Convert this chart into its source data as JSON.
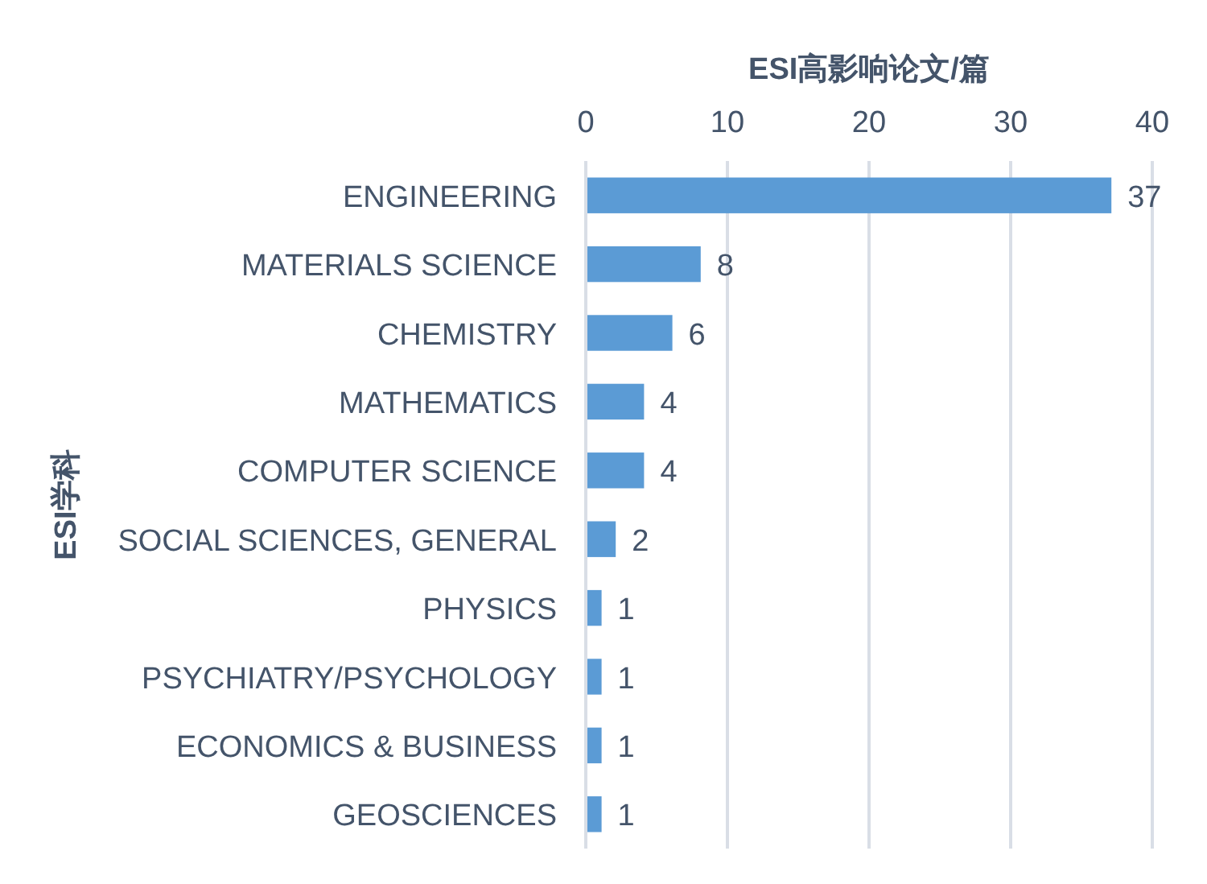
{
  "chart_data": {
    "type": "bar",
    "orientation": "horizontal",
    "xlabel": "ESI高影响论文/篇",
    "ylabel": "ESI学科",
    "categories": [
      "ENGINEERING",
      "MATERIALS SCIENCE",
      "CHEMISTRY",
      "MATHEMATICS",
      "COMPUTER SCIENCE",
      "SOCIAL SCIENCES, GENERAL",
      "PHYSICS",
      "PSYCHIATRY/PSYCHOLOGY",
      "ECONOMICS & BUSINESS",
      "GEOSCIENCES"
    ],
    "values": [
      37,
      8,
      6,
      4,
      4,
      2,
      1,
      1,
      1,
      1
    ],
    "color": "#5b9bd5",
    "xlim": [
      0,
      40
    ],
    "xticks": [
      0,
      10,
      20,
      30,
      40
    ],
    "grid": "x",
    "data_labels": true
  }
}
